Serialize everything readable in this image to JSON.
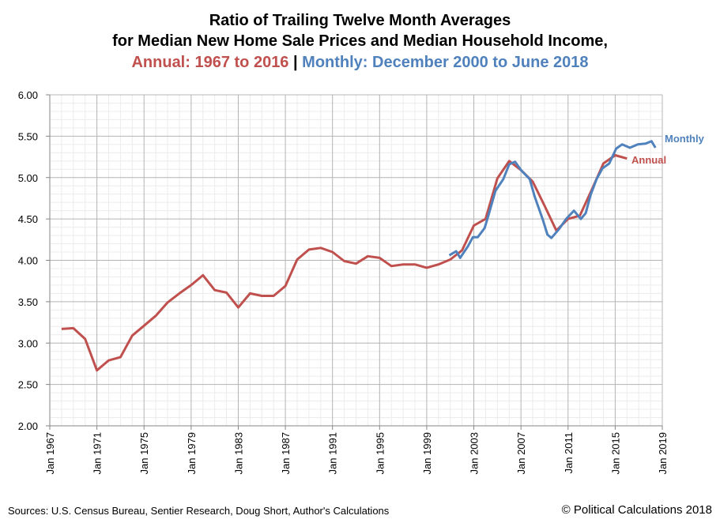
{
  "chart_data": {
    "type": "line",
    "title_line1": "Ratio of Trailing Twelve Month Averages",
    "title_line2": "for Median New Home Sale Prices and Median Household Income,",
    "title_annual": "Annual: 1967 to 2016",
    "title_sep": " | ",
    "title_monthly": "Monthly: December 2000 to June 2018",
    "xlabel": "",
    "ylabel": "",
    "ylim": [
      2.0,
      6.0
    ],
    "yticks": [
      "2.00",
      "2.50",
      "3.00",
      "3.50",
      "4.00",
      "4.50",
      "5.00",
      "5.50",
      "6.00"
    ],
    "xlim": [
      "1967-01",
      "2019-01"
    ],
    "xticks": [
      "Jan 1967",
      "Jan 1971",
      "Jan 1975",
      "Jan 1979",
      "Jan 1983",
      "Jan 1987",
      "Jan 1991",
      "Jan 1995",
      "Jan 1999",
      "Jan 2003",
      "Jan 2007",
      "Jan 2011",
      "Jan 2015",
      "Jan 2019"
    ],
    "grid": true,
    "legend": "inline-right",
    "series": [
      {
        "name": "Annual",
        "color": "#c0504d",
        "x": [
          1968,
          1969,
          1970,
          1971,
          1972,
          1973,
          1974,
          1975,
          1976,
          1977,
          1978,
          1979,
          1980,
          1981,
          1982,
          1983,
          1984,
          1985,
          1986,
          1987,
          1988,
          1989,
          1990,
          1991,
          1992,
          1993,
          1994,
          1995,
          1996,
          1997,
          1998,
          1999,
          2000,
          2001,
          2002,
          2003,
          2004,
          2005,
          2006,
          2007,
          2008,
          2009,
          2010,
          2011,
          2012,
          2013,
          2014,
          2015,
          2016
        ],
        "values": [
          3.17,
          3.18,
          3.05,
          2.67,
          2.79,
          2.83,
          3.09,
          3.21,
          3.33,
          3.49,
          3.6,
          3.7,
          3.82,
          3.64,
          3.61,
          3.43,
          3.6,
          3.57,
          3.57,
          3.69,
          4.01,
          4.13,
          4.15,
          4.1,
          3.99,
          3.96,
          4.05,
          4.03,
          3.93,
          3.95,
          3.95,
          3.91,
          3.95,
          4.01,
          4.12,
          4.42,
          4.5,
          4.99,
          5.2,
          5.09,
          4.95,
          4.66,
          4.36,
          4.5,
          4.54,
          4.85,
          5.17,
          5.27,
          5.23
        ]
      },
      {
        "name": "Monthly",
        "color": "#4f81bd",
        "x": [
          "2000-12",
          "2001-07",
          "2001-11",
          "2002-07",
          "2002-12",
          "2003-05",
          "2003-12",
          "2004-04",
          "2004-11",
          "2005-07",
          "2006-01",
          "2006-07",
          "2007-01",
          "2007-10",
          "2008-03",
          "2008-11",
          "2009-04",
          "2009-08",
          "2010-04",
          "2010-11",
          "2011-07",
          "2012-02",
          "2012-07",
          "2012-12",
          "2013-06",
          "2013-12",
          "2014-07",
          "2015-02",
          "2015-08",
          "2016-04",
          "2016-12",
          "2017-08",
          "2018-02",
          "2018-06"
        ],
        "values": [
          4.06,
          4.11,
          4.03,
          4.17,
          4.28,
          4.28,
          4.39,
          4.55,
          4.84,
          4.98,
          5.16,
          5.19,
          5.09,
          4.98,
          4.77,
          4.5,
          4.31,
          4.27,
          4.38,
          4.5,
          4.6,
          4.5,
          4.57,
          4.79,
          4.98,
          5.11,
          5.17,
          5.35,
          5.4,
          5.36,
          5.4,
          5.41,
          5.44,
          5.36
        ]
      }
    ]
  },
  "footer": {
    "sources": "Sources: U.S. Census Bureau, Sentier Research, Doug Short, Author's Calculations",
    "copyright": "© Political Calculations 2018"
  }
}
